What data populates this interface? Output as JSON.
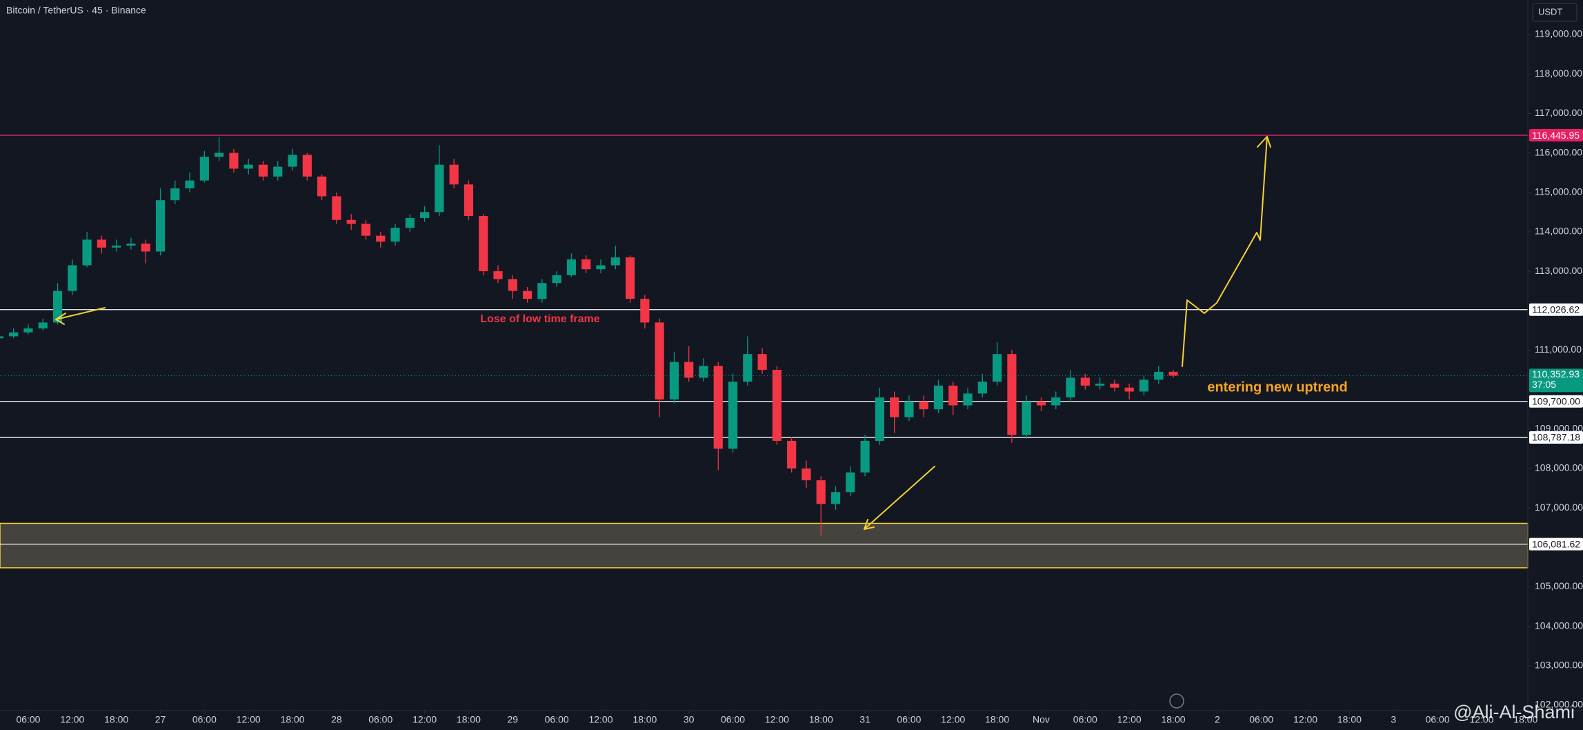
{
  "header": {
    "symbol": "Bitcoin / TetherUS · 45 · Binance",
    "currency": "USDT"
  },
  "watermark": "@Ali-Al-Shami",
  "chart_data": {
    "type": "candlestick",
    "x": [
      2,
      4,
      6,
      8,
      10,
      12,
      14,
      16,
      18,
      20,
      22,
      24,
      26,
      28,
      30,
      32,
      34,
      36,
      38,
      40,
      42,
      44,
      46,
      48,
      50,
      52,
      54,
      56,
      58,
      60,
      62,
      64,
      66,
      68,
      70,
      72,
      74,
      76,
      78,
      80,
      82,
      84,
      86,
      88,
      90,
      92,
      94,
      96,
      98,
      100,
      102,
      104,
      106,
      108,
      110,
      112,
      114,
      116,
      118,
      120,
      122,
      124,
      126,
      128,
      130,
      132,
      134,
      136,
      138,
      140,
      142,
      144,
      146,
      148,
      150,
      152,
      154,
      156,
      158,
      160,
      162
    ],
    "open": [
      111300,
      111350,
      111450,
      111550,
      111700,
      112500,
      113150,
      113800,
      113600,
      113650,
      113700,
      113500,
      114800,
      115100,
      115300,
      115900,
      116000,
      115600,
      115700,
      115400,
      115650,
      115950,
      115400,
      114900,
      114300,
      114200,
      113900,
      113750,
      114100,
      114350,
      114500,
      115700,
      115200,
      114400,
      113000,
      112800,
      112500,
      112300,
      112700,
      112900,
      113300,
      113050,
      113150,
      113350,
      112300,
      111700,
      109750,
      110700,
      110300,
      110600,
      108500,
      110200,
      110900,
      110500,
      108700,
      108000,
      107700,
      107100,
      107400,
      107900,
      108700,
      109800,
      109300,
      109700,
      109500,
      110100,
      109600,
      109900,
      110200,
      110900,
      108850,
      109700,
      109600,
      109800,
      110300,
      110100,
      110150,
      110050,
      109950,
      110250,
      110450
    ],
    "high": [
      111450,
      111550,
      111650,
      111800,
      112700,
      113300,
      114000,
      113900,
      113800,
      113850,
      113800,
      115100,
      115300,
      115500,
      116050,
      116400,
      116100,
      115850,
      115800,
      115800,
      116100,
      116000,
      115450,
      115000,
      114450,
      114300,
      114000,
      114200,
      114450,
      114650,
      116200,
      115850,
      115300,
      114450,
      113150,
      112900,
      112600,
      112800,
      113000,
      113450,
      113400,
      113300,
      113650,
      113400,
      112400,
      111800,
      110950,
      111100,
      110800,
      110700,
      110400,
      111350,
      111050,
      110600,
      108800,
      108200,
      107800,
      107550,
      108050,
      108850,
      110050,
      109950,
      109850,
      109850,
      110250,
      110200,
      110050,
      110400,
      111200,
      111000,
      109850,
      109800,
      109950,
      110500,
      110400,
      110300,
      110250,
      110150,
      110350,
      110600,
      110500
    ],
    "low": [
      111200,
      111300,
      111400,
      111500,
      111650,
      112400,
      113100,
      113450,
      113500,
      113550,
      113200,
      113400,
      114700,
      115000,
      115250,
      115800,
      115500,
      115450,
      115300,
      115300,
      115550,
      115300,
      114800,
      114200,
      114050,
      113800,
      113600,
      113650,
      114000,
      114250,
      114400,
      115100,
      114300,
      112900,
      112700,
      112300,
      112200,
      112200,
      112600,
      112850,
      112950,
      112950,
      113050,
      112200,
      111550,
      109300,
      109650,
      110200,
      110200,
      107950,
      108400,
      110100,
      110400,
      108600,
      107900,
      107500,
      106300,
      106950,
      107300,
      107800,
      108600,
      108900,
      109200,
      109300,
      109400,
      109350,
      109500,
      109800,
      110100,
      108650,
      108750,
      109450,
      109500,
      109700,
      110000,
      110000,
      109950,
      109750,
      109850,
      110150,
      110300
    ],
    "close": [
      111350,
      111450,
      111550,
      111700,
      112500,
      113150,
      113800,
      113600,
      113650,
      113700,
      113500,
      114800,
      115100,
      115300,
      115900,
      116000,
      115600,
      115700,
      115400,
      115650,
      115950,
      115400,
      114900,
      114300,
      114200,
      113900,
      113750,
      114100,
      114350,
      114500,
      115700,
      115200,
      114400,
      113000,
      112800,
      112500,
      112300,
      112700,
      112900,
      113300,
      113050,
      113150,
      113350,
      112300,
      111700,
      109750,
      110700,
      110300,
      110600,
      108500,
      110200,
      110900,
      110500,
      108700,
      108000,
      107700,
      107100,
      107400,
      107900,
      108700,
      109800,
      109300,
      109700,
      109500,
      110100,
      109600,
      109900,
      110200,
      110900,
      108850,
      109700,
      109600,
      109800,
      110300,
      110100,
      110150,
      110050,
      109950,
      110250,
      110450,
      110353
    ],
    "up_color": "#089981",
    "down_color": "#f23645",
    "xlim": [
      2.15,
      210.3
    ],
    "xticks": [
      {
        "value": 6,
        "label": "06:00"
      },
      {
        "value": 12,
        "label": "12:00"
      },
      {
        "value": 18,
        "label": "18:00"
      },
      {
        "value": 24,
        "label": "27"
      },
      {
        "value": 30,
        "label": "06:00"
      },
      {
        "value": 36,
        "label": "12:00"
      },
      {
        "value": 42,
        "label": "18:00"
      },
      {
        "value": 48,
        "label": "28"
      },
      {
        "value": 54,
        "label": "06:00"
      },
      {
        "value": 60,
        "label": "12:00"
      },
      {
        "value": 66,
        "label": "18:00"
      },
      {
        "value": 72,
        "label": "29"
      },
      {
        "value": 78,
        "label": "06:00"
      },
      {
        "value": 84,
        "label": "12:00"
      },
      {
        "value": 90,
        "label": "18:00"
      },
      {
        "value": 96,
        "label": "30"
      },
      {
        "value": 102,
        "label": "06:00"
      },
      {
        "value": 108,
        "label": "12:00"
      },
      {
        "value": 114,
        "label": "18:00"
      },
      {
        "value": 120,
        "label": "31"
      },
      {
        "value": 126,
        "label": "06:00"
      },
      {
        "value": 132,
        "label": "12:00"
      },
      {
        "value": 138,
        "label": "18:00"
      },
      {
        "value": 144,
        "label": "Nov"
      },
      {
        "value": 150,
        "label": "06:00"
      },
      {
        "value": 156,
        "label": "12:00"
      },
      {
        "value": 162,
        "label": "18:00"
      },
      {
        "value": 168,
        "label": "2"
      },
      {
        "value": 174,
        "label": "06:00"
      },
      {
        "value": 180,
        "label": "12:00"
      },
      {
        "value": 186,
        "label": "18:00"
      },
      {
        "value": 192,
        "label": "3"
      },
      {
        "value": 198,
        "label": "06:00"
      },
      {
        "value": 204,
        "label": "12:00"
      },
      {
        "value": 210,
        "label": "18:00"
      }
    ],
    "ylim": [
      101860,
      119875
    ],
    "yticks": [
      {
        "value": 119000,
        "label": "119,000.00"
      },
      {
        "value": 118000,
        "label": "118,000.00"
      },
      {
        "value": 117000,
        "label": "117,000.00"
      },
      {
        "value": 116000,
        "label": "116,000.00"
      },
      {
        "value": 115000,
        "label": "115,000.00"
      },
      {
        "value": 114000,
        "label": "114,000.00"
      },
      {
        "value": 113000,
        "label": "113,000.00"
      },
      {
        "value": 111000,
        "label": "111,000.00"
      },
      {
        "value": 109000,
        "label": "109,000.00"
      },
      {
        "value": 108000,
        "label": "108,000.00"
      },
      {
        "value": 107000,
        "label": "107,000.00"
      },
      {
        "value": 105000,
        "label": "105,000.00"
      },
      {
        "value": 104000,
        "label": "104,000.00"
      },
      {
        "value": 103000,
        "label": "103,000.00"
      },
      {
        "value": 102000,
        "label": "102,000.00"
      }
    ],
    "levels": [
      {
        "value": 116445.95,
        "label": "116,445.95",
        "color": "#e91e63"
      },
      {
        "value": 112026.62,
        "label": "112,026.62",
        "color": "#ffffff"
      },
      {
        "value": 109700,
        "label": "109,700.00",
        "color": "#ffffff"
      },
      {
        "value": 108787.18,
        "label": "108,787.18",
        "color": "#ffffff"
      },
      {
        "value": 106081.62,
        "label": "106,081.62",
        "color": "#ffffff"
      }
    ],
    "zone": {
      "range": [
        105482,
        106609
      ],
      "color": "#f7d22e"
    },
    "last_price": {
      "value": 110352.93,
      "label": "110,352.93",
      "countdown": "37:05",
      "color": "#089981"
    },
    "annotations": [
      "Lose of low time frame",
      "entering new uptrend"
    ]
  }
}
